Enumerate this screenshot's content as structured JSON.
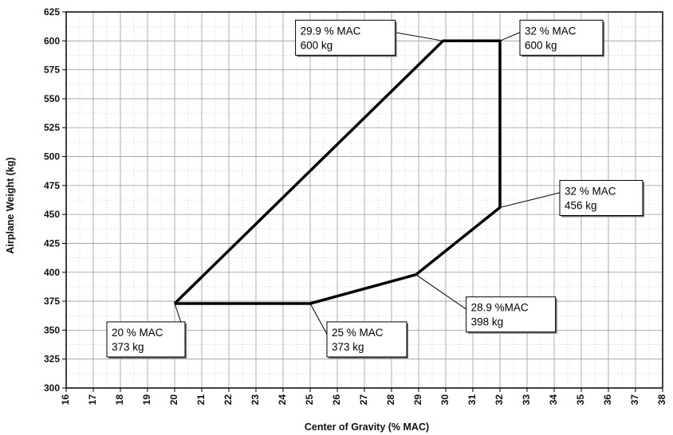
{
  "chart_data": {
    "type": "line",
    "title": "",
    "xlabel": "Center of Gravity (% MAC)",
    "ylabel": "Airplane Weight (kg)",
    "xlim": [
      16,
      38
    ],
    "ylim": [
      300,
      625
    ],
    "x_ticks": [
      16,
      17,
      18,
      19,
      20,
      21,
      22,
      23,
      24,
      25,
      26,
      27,
      28,
      29,
      30,
      31,
      32,
      33,
      34,
      35,
      36,
      37,
      38
    ],
    "y_ticks": [
      300,
      325,
      350,
      375,
      400,
      425,
      450,
      475,
      500,
      525,
      550,
      575,
      600,
      625
    ],
    "grid": true,
    "series": [
      {
        "points": [
          {
            "x": 20,
            "y": 373
          },
          {
            "x": 29.9,
            "y": 600
          },
          {
            "x": 32,
            "y": 600
          },
          {
            "x": 32,
            "y": 456
          },
          {
            "x": 28.9,
            "y": 398
          },
          {
            "x": 25,
            "y": 373
          },
          {
            "x": 20,
            "y": 373
          }
        ]
      }
    ],
    "annotations": [
      {
        "line1": "29.9 % MAC",
        "line2": "600 kg",
        "x": 29.9,
        "y": 600
      },
      {
        "line1": "32 % MAC",
        "line2": "600 kg",
        "x": 32,
        "y": 600
      },
      {
        "line1": "32 % MAC",
        "line2": "456 kg",
        "x": 32,
        "y": 456
      },
      {
        "line1": "28.9 %MAC",
        "line2": "398 kg",
        "x": 28.9,
        "y": 398
      },
      {
        "line1": "25 % MAC",
        "line2": "373 kg",
        "x": 25,
        "y": 373
      },
      {
        "line1": "20 % MAC",
        "line2": "373 kg",
        "x": 20,
        "y": 373
      }
    ]
  }
}
